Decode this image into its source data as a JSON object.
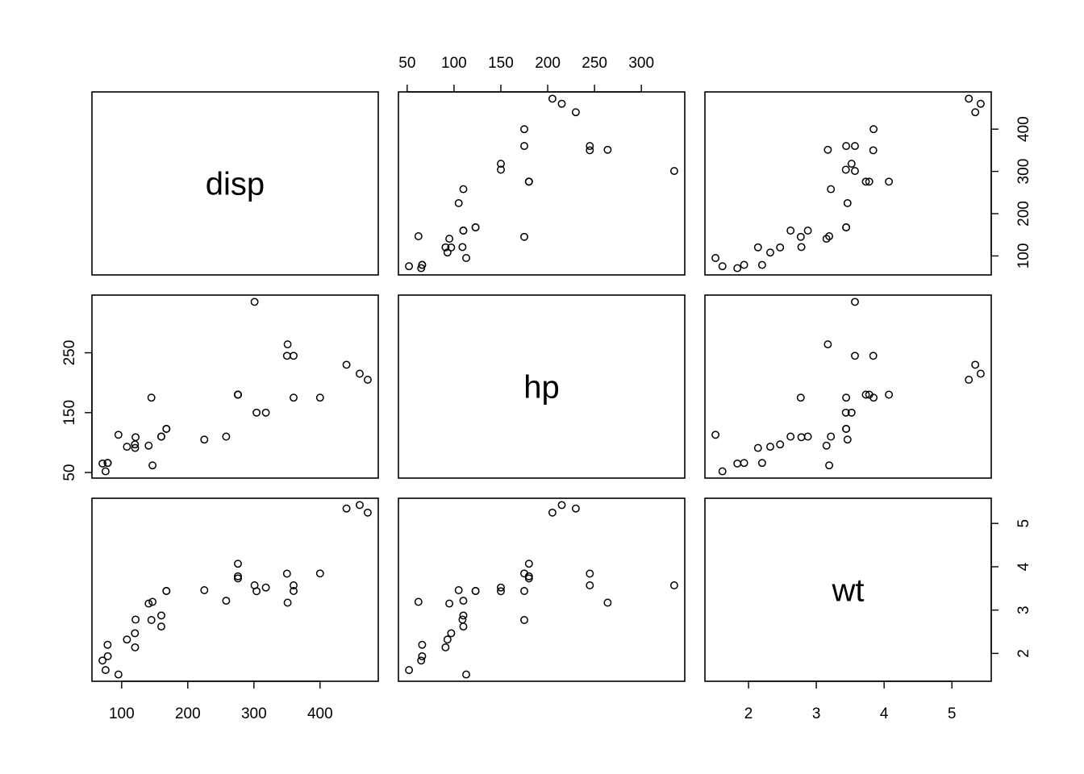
{
  "chart_data": {
    "type": "scatter",
    "subtype": "scatterplot-matrix",
    "variables": [
      "disp",
      "hp",
      "wt"
    ],
    "ranges": {
      "disp": [
        71.1,
        472
      ],
      "hp": [
        52,
        335
      ],
      "wt": [
        1.513,
        5.424
      ]
    },
    "ticks": {
      "disp": [
        100,
        200,
        300,
        400
      ],
      "hp": [
        50,
        100,
        150,
        200,
        250,
        300
      ],
      "hp_left": [
        50,
        150,
        250
      ],
      "wt": [
        2,
        3,
        4,
        5
      ]
    },
    "axes_placement": {
      "bottom": [
        "disp",
        null,
        "wt"
      ],
      "top": [
        null,
        "hp",
        null
      ],
      "left": [
        null,
        "hp",
        null
      ],
      "right": [
        "disp",
        null,
        "wt"
      ]
    },
    "grid": false,
    "points": {
      "disp": [
        160,
        160,
        108,
        258,
        360,
        225,
        360,
        146.7,
        140.8,
        167.6,
        167.6,
        275.8,
        275.8,
        275.8,
        472,
        460,
        440,
        78.7,
        75.7,
        71.1,
        120.1,
        318,
        304,
        350,
        400,
        79,
        120.3,
        95.1,
        351,
        145,
        301,
        121
      ],
      "hp": [
        110,
        110,
        93,
        110,
        175,
        105,
        245,
        62,
        95,
        123,
        123,
        180,
        180,
        180,
        205,
        215,
        230,
        66,
        52,
        65,
        97,
        150,
        150,
        245,
        175,
        66,
        91,
        113,
        264,
        175,
        335,
        109
      ],
      "wt": [
        2.62,
        2.875,
        2.32,
        3.215,
        3.44,
        3.46,
        3.57,
        3.19,
        3.15,
        3.44,
        3.44,
        4.07,
        3.73,
        3.78,
        5.25,
        5.424,
        5.345,
        2.2,
        1.615,
        1.835,
        2.465,
        3.52,
        3.435,
        3.84,
        3.845,
        1.935,
        2.14,
        1.513,
        3.17,
        2.77,
        3.57,
        2.78
      ]
    }
  }
}
